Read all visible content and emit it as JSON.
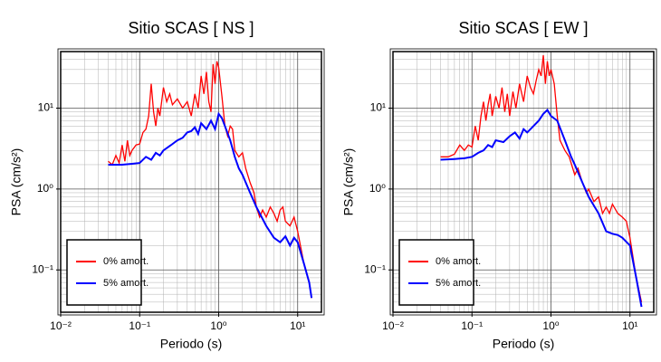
{
  "chart_data": [
    {
      "type": "line",
      "title": "Sitio SCAS [ NS ]",
      "x_label": "Periodo (s)",
      "y_label": "PSA (cm/s²)",
      "log_x": true,
      "log_y": true,
      "grid": true,
      "minor_grid": true,
      "legend": "lower left",
      "xlim": [
        0.01,
        20
      ],
      "ylim": [
        0.03,
        50
      ],
      "xticks": [
        {
          "value": 0.01,
          "label": "10⁻²"
        },
        {
          "value": 0.1,
          "label": "10⁻¹"
        },
        {
          "value": 1,
          "label": "10⁰"
        },
        {
          "value": 10,
          "label": "10¹"
        }
      ],
      "yticks": [
        {
          "value": 0.1,
          "label": "10⁻¹"
        },
        {
          "value": 1,
          "label": "10⁰"
        },
        {
          "value": 10,
          "label": "10¹"
        }
      ],
      "series": [
        {
          "name": "0% amort.",
          "color": "#ff0000",
          "x": [
            0.04,
            0.045,
            0.05,
            0.055,
            0.06,
            0.065,
            0.07,
            0.075,
            0.08,
            0.09,
            0.1,
            0.11,
            0.12,
            0.13,
            0.14,
            0.15,
            0.16,
            0.17,
            0.18,
            0.2,
            0.22,
            0.24,
            0.26,
            0.3,
            0.35,
            0.4,
            0.45,
            0.5,
            0.55,
            0.6,
            0.65,
            0.7,
            0.75,
            0.8,
            0.85,
            0.9,
            0.95,
            1.0,
            1.1,
            1.2,
            1.3,
            1.4,
            1.5,
            1.6,
            1.8,
            2.0,
            2.2,
            2.5,
            2.8,
            3.0,
            3.3,
            3.6,
            4.0,
            4.5,
            5,
            5.5,
            6,
            6.5,
            7,
            8,
            9,
            10,
            12,
            14,
            15
          ],
          "values": [
            2.2,
            2.0,
            2.6,
            2.1,
            3.5,
            2.2,
            4.0,
            2.6,
            3.0,
            3.5,
            3.6,
            5,
            5.5,
            8,
            20,
            9,
            6,
            10,
            8,
            18,
            12,
            15,
            11,
            13,
            10,
            12,
            8,
            15,
            10,
            25,
            15,
            28,
            12,
            9,
            35,
            20,
            38,
            32,
            14,
            6,
            4.5,
            6,
            5.5,
            3,
            2.5,
            2.8,
            1.8,
            1.2,
            0.9,
            0.6,
            0.45,
            0.55,
            0.45,
            0.6,
            0.5,
            0.4,
            0.55,
            0.6,
            0.4,
            0.35,
            0.45,
            0.3,
            0.12,
            0.07,
            0.045
          ]
        },
        {
          "name": "5% amort.",
          "color": "#0000ff",
          "x": [
            0.04,
            0.06,
            0.08,
            0.1,
            0.12,
            0.14,
            0.16,
            0.18,
            0.2,
            0.25,
            0.3,
            0.35,
            0.4,
            0.45,
            0.5,
            0.55,
            0.6,
            0.7,
            0.8,
            0.9,
            1.0,
            1.1,
            1.2,
            1.4,
            1.6,
            1.8,
            2.0,
            2.5,
            3.0,
            3.5,
            4,
            5,
            6,
            7,
            8,
            9,
            10,
            12,
            14,
            15
          ],
          "values": [
            2.0,
            2.0,
            2.05,
            2.1,
            2.5,
            2.3,
            2.8,
            2.6,
            3.0,
            3.5,
            4.0,
            4.3,
            5.0,
            5.2,
            5.8,
            4.8,
            6.5,
            5.5,
            7.0,
            5.5,
            8.5,
            7.5,
            6.0,
            4.0,
            2.5,
            1.8,
            1.5,
            0.9,
            0.6,
            0.45,
            0.35,
            0.25,
            0.22,
            0.26,
            0.2,
            0.25,
            0.22,
            0.12,
            0.07,
            0.045
          ]
        }
      ]
    },
    {
      "type": "line",
      "title": "Sitio SCAS [ EW ]",
      "x_label": "Periodo (s)",
      "y_label": "PSA (cm/s²)",
      "log_x": true,
      "log_y": true,
      "grid": true,
      "minor_grid": true,
      "legend": "lower left",
      "xlim": [
        0.01,
        20
      ],
      "ylim": [
        0.03,
        50
      ],
      "xticks": [
        {
          "value": 0.01,
          "label": "10⁻²"
        },
        {
          "value": 0.1,
          "label": "10⁻¹"
        },
        {
          "value": 1,
          "label": "10⁰"
        },
        {
          "value": 10,
          "label": "10¹"
        }
      ],
      "yticks": [
        {
          "value": 0.1,
          "label": "10⁻¹"
        },
        {
          "value": 1,
          "label": "10⁰"
        },
        {
          "value": 10,
          "label": "10¹"
        }
      ],
      "series": [
        {
          "name": "0% amort.",
          "color": "#ff0000",
          "x": [
            0.04,
            0.05,
            0.06,
            0.07,
            0.08,
            0.09,
            0.1,
            0.11,
            0.12,
            0.13,
            0.14,
            0.15,
            0.16,
            0.17,
            0.18,
            0.2,
            0.22,
            0.24,
            0.26,
            0.28,
            0.3,
            0.33,
            0.36,
            0.4,
            0.45,
            0.5,
            0.55,
            0.6,
            0.65,
            0.7,
            0.75,
            0.8,
            0.85,
            0.9,
            0.95,
            1.0,
            1.1,
            1.2,
            1.3,
            1.5,
            1.7,
            2.0,
            2.2,
            2.5,
            2.8,
            3,
            3.5,
            4,
            4.5,
            5,
            5.5,
            6,
            7,
            8,
            9,
            10,
            12,
            14
          ],
          "values": [
            2.5,
            2.5,
            2.7,
            3.5,
            3.0,
            3.5,
            3.3,
            6,
            4,
            8,
            12,
            7,
            11,
            15,
            8,
            14,
            10,
            18,
            9,
            15,
            8,
            16,
            10,
            20,
            12,
            25,
            18,
            15,
            22,
            30,
            25,
            45,
            20,
            38,
            25,
            30,
            20,
            8,
            4,
            3,
            2.5,
            1.5,
            1.8,
            1.2,
            0.9,
            1.0,
            0.7,
            0.8,
            0.5,
            0.6,
            0.5,
            0.65,
            0.5,
            0.45,
            0.4,
            0.25,
            0.08,
            0.04
          ]
        },
        {
          "name": "5% amort.",
          "color": "#0000ff",
          "x": [
            0.04,
            0.06,
            0.08,
            0.1,
            0.12,
            0.14,
            0.16,
            0.18,
            0.2,
            0.25,
            0.3,
            0.35,
            0.4,
            0.45,
            0.5,
            0.6,
            0.7,
            0.8,
            0.9,
            1.0,
            1.2,
            1.5,
            1.8,
            2.0,
            2.5,
            3,
            4,
            5,
            6,
            7,
            8,
            10,
            12,
            14
          ],
          "values": [
            2.3,
            2.35,
            2.4,
            2.5,
            2.8,
            3.0,
            3.5,
            3.3,
            4.0,
            3.8,
            4.5,
            5.0,
            4.2,
            5.5,
            5.0,
            6.0,
            7.0,
            8.5,
            9.5,
            8.0,
            7.0,
            4.0,
            2.5,
            2.0,
            1.2,
            0.8,
            0.5,
            0.3,
            0.28,
            0.27,
            0.25,
            0.2,
            0.08,
            0.035
          ]
        }
      ]
    }
  ]
}
